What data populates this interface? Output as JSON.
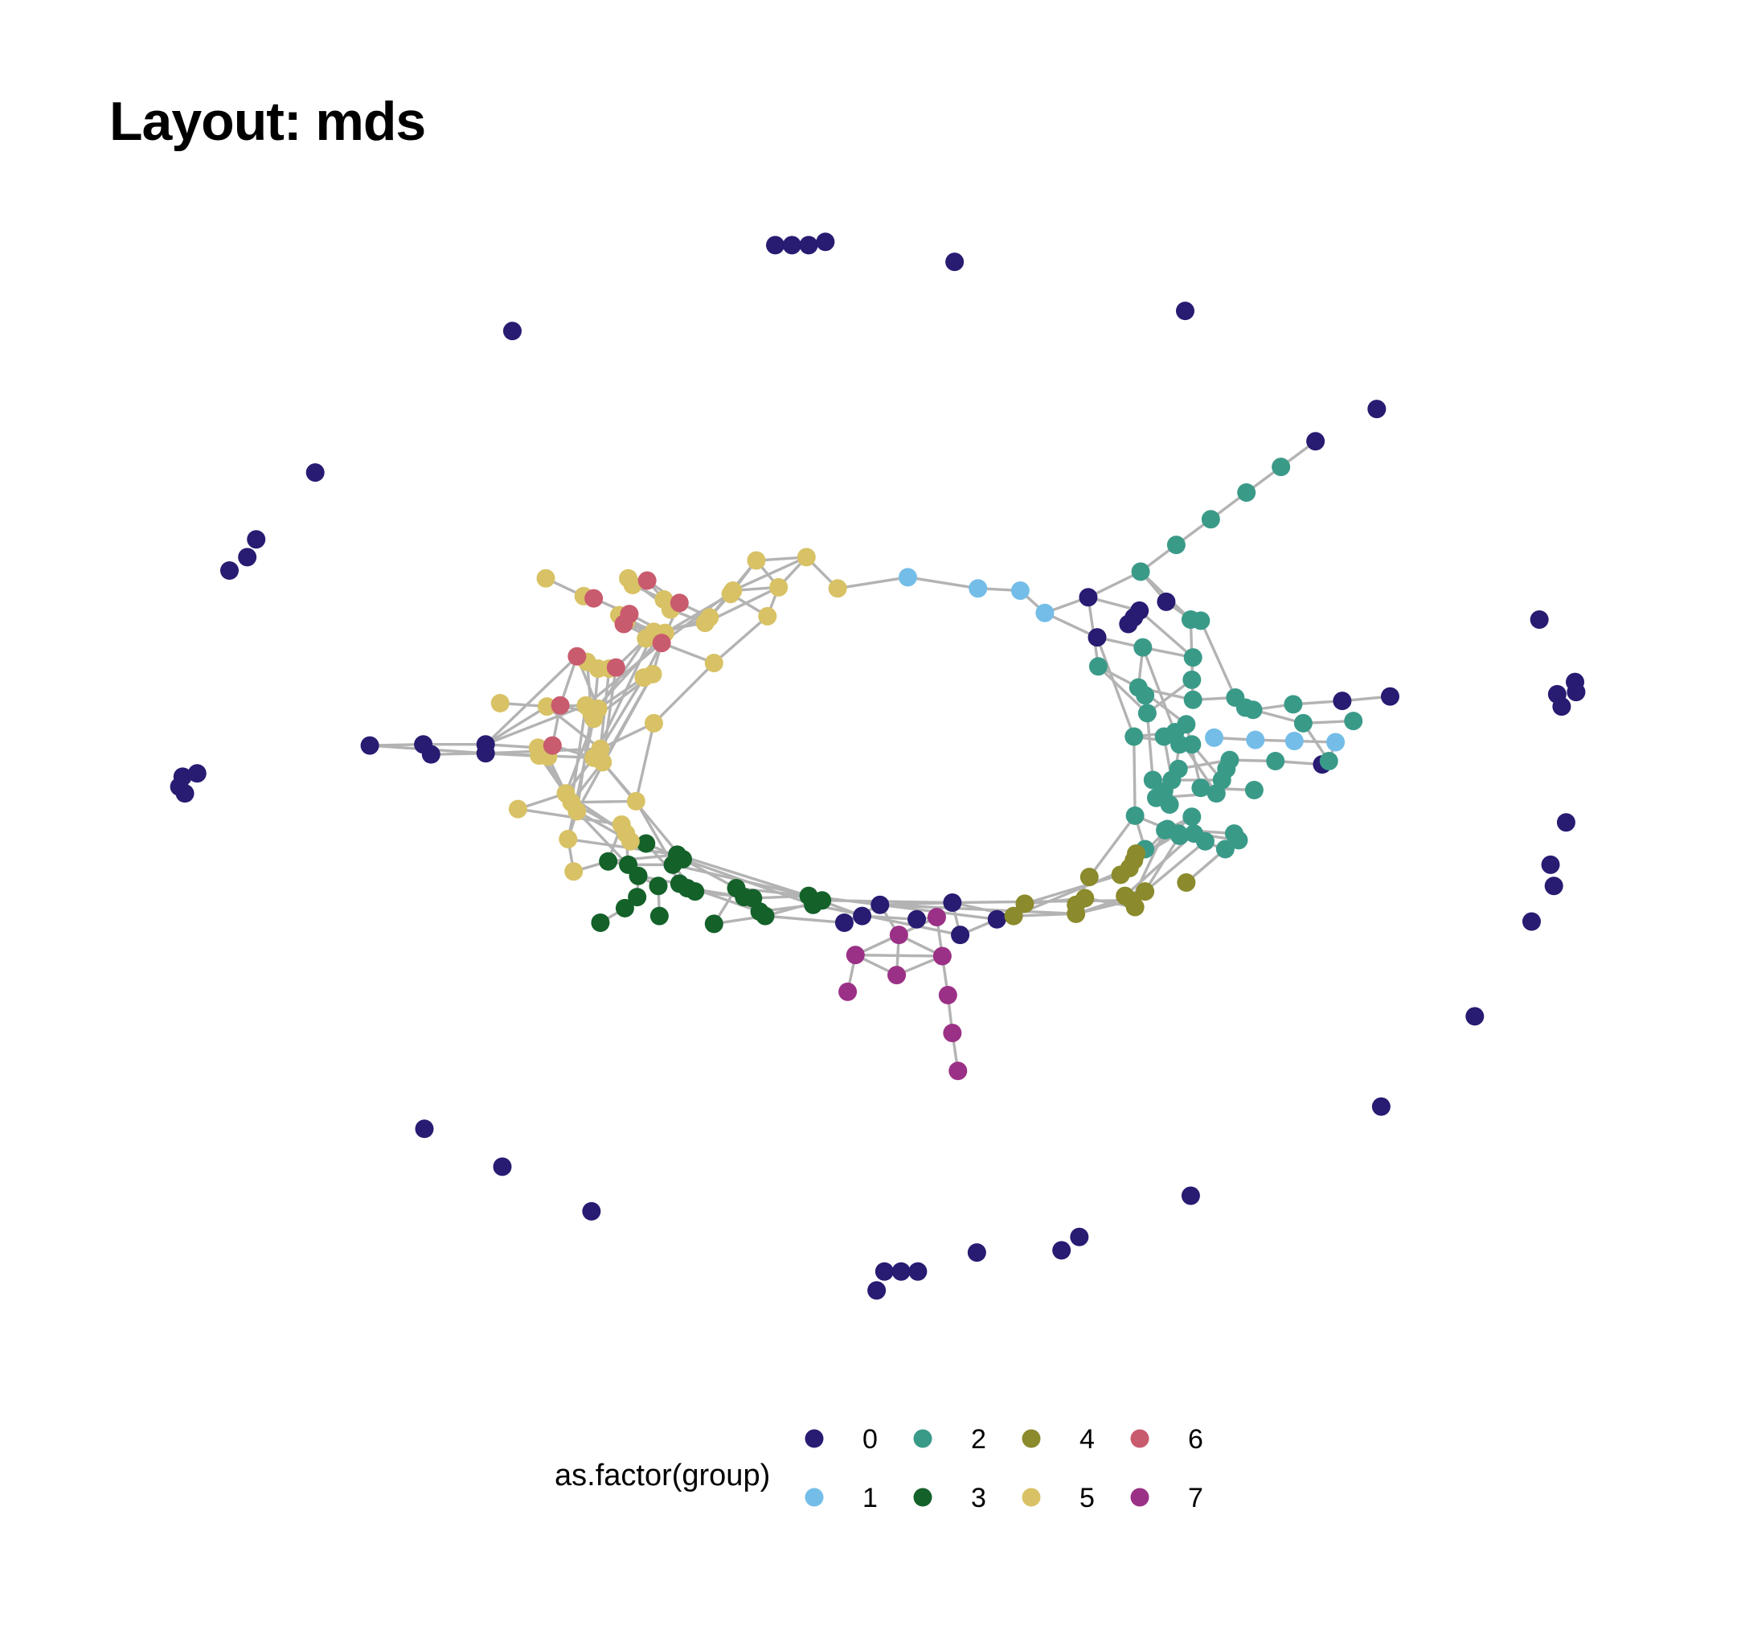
{
  "title": "Layout: mds",
  "colors": {
    "edge": "#b3b3b3",
    "groups": {
      "0": "#271b72",
      "1": "#74bde8",
      "2": "#3a9a88",
      "3": "#14612a",
      "4": "#8b8a2c",
      "5": "#d8c265",
      "6": "#c95b6e",
      "7": "#9b3186"
    }
  },
  "legend": {
    "title": "as.factor(group)",
    "entries": [
      {
        "label": "0",
        "group": "0"
      },
      {
        "label": "1",
        "group": "1"
      },
      {
        "label": "2",
        "group": "2"
      },
      {
        "label": "3",
        "group": "3"
      },
      {
        "label": "4",
        "group": "4"
      },
      {
        "label": "5",
        "group": "5"
      },
      {
        "label": "6",
        "group": "6"
      },
      {
        "label": "7",
        "group": "7"
      }
    ]
  }
}
